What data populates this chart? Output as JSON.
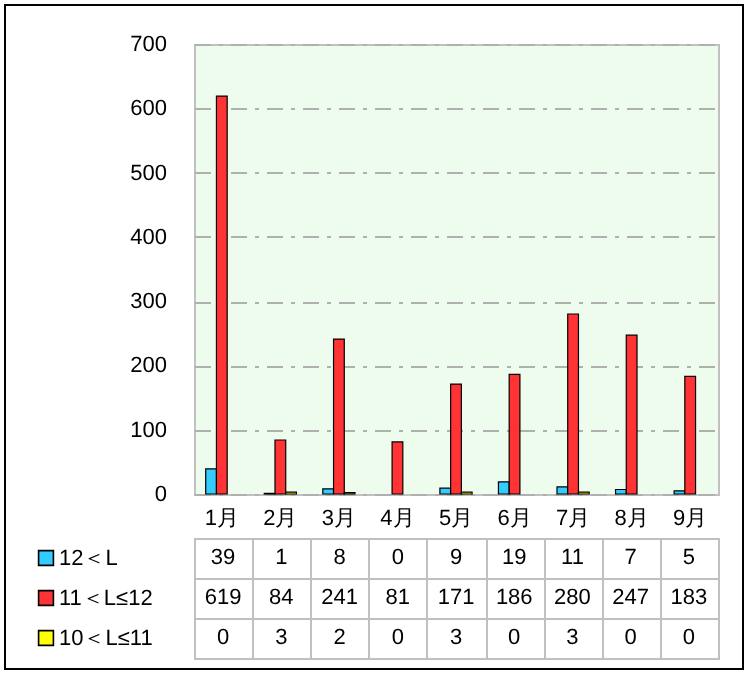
{
  "chart_data": {
    "type": "bar",
    "categories": [
      "1月",
      "2月",
      "3月",
      "4月",
      "5月",
      "6月",
      "7月",
      "8月",
      "9月"
    ],
    "series": [
      {
        "name": "12＜L",
        "color": "#33ccff",
        "values": [
          39,
          1,
          8,
          0,
          9,
          19,
          11,
          7,
          5
        ]
      },
      {
        "name": "11＜L≤12",
        "color": "#ff3333",
        "values": [
          619,
          84,
          241,
          81,
          171,
          186,
          280,
          247,
          183
        ]
      },
      {
        "name": "10＜L≤11",
        "color": "#ffff00",
        "values": [
          0,
          3,
          2,
          0,
          3,
          0,
          3,
          0,
          0
        ]
      }
    ],
    "ylim": [
      0,
      700
    ],
    "yticks": [
      0,
      100,
      200,
      300,
      400,
      500,
      600,
      700
    ],
    "grid": "y",
    "legend": "bottom",
    "data_labels": true
  }
}
